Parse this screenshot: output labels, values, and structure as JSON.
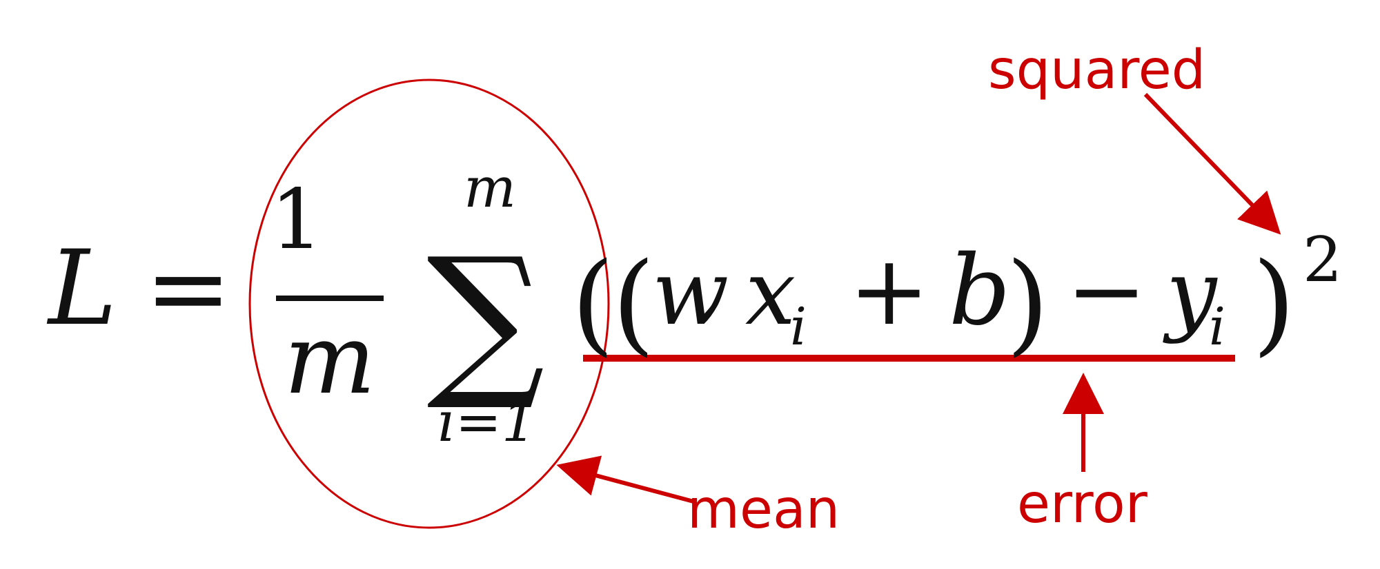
{
  "formula": {
    "lhs": "L",
    "equals": "=",
    "fraction_numerator": "1",
    "fraction_denominator": "m",
    "sum_symbol": "∑",
    "sum_upper": "m",
    "sum_lower": "i=1",
    "outer_open_paren": "(",
    "inner_open_paren": "(",
    "w": "w",
    "x": "x",
    "x_subscript": "i",
    "plus": "+",
    "b": "b",
    "inner_close_paren": ")",
    "minus": "−",
    "y": "y",
    "y_subscript": "i",
    "outer_close_paren": ")",
    "exponent": "2"
  },
  "annotations": {
    "mean_label": "mean",
    "error_label": "error",
    "squared_label": "squared"
  },
  "colors": {
    "annotation": "#cc0000",
    "math": "#111111",
    "background": "#ffffff"
  }
}
